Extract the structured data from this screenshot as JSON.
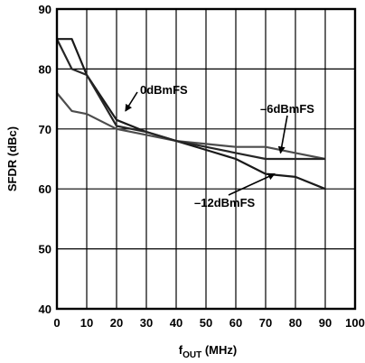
{
  "chart_data": {
    "type": "line",
    "title": "",
    "xlabel_main": "f",
    "xlabel_sub": "OUT",
    "xlabel_unit": " (MHz)",
    "ylabel": "SFDR (dBc)",
    "xlim": [
      0,
      100
    ],
    "ylim": [
      40,
      90
    ],
    "xticks": [
      "0",
      "10",
      "20",
      "30",
      "40",
      "50",
      "60",
      "70",
      "80",
      "90",
      "100"
    ],
    "yticks": [
      "40",
      "50",
      "60",
      "70",
      "80",
      "90"
    ],
    "grid": true,
    "series": [
      {
        "name": "0dBmFS",
        "color": "#1a1a1a",
        "x": [
          0,
          5,
          10,
          20,
          30,
          40,
          50,
          60,
          70,
          80,
          90
        ],
        "y": [
          85,
          85,
          79,
          71.5,
          69.5,
          68,
          66.5,
          65,
          62.5,
          62,
          60
        ]
      },
      {
        "name": "-6dBmFS",
        "color": "#4d4d4d",
        "x": [
          0,
          5,
          10,
          20,
          30,
          40,
          50,
          60,
          70,
          80,
          90
        ],
        "y": [
          76,
          73,
          72.5,
          70,
          69,
          68,
          67.5,
          67,
          67,
          66,
          65
        ]
      },
      {
        "name": "-12dBmFS",
        "color": "#262626",
        "x": [
          0,
          5,
          10,
          20,
          30,
          40,
          50,
          60,
          70,
          80,
          90
        ],
        "y": [
          85,
          80,
          79,
          70.5,
          69.5,
          68,
          67,
          66,
          65,
          65,
          65
        ]
      }
    ],
    "annotations": [
      {
        "text": "0dBmFS",
        "points_to_series": 0,
        "x": 23,
        "y": 73
      },
      {
        "text": "–6dBmFS",
        "points_to_series": 1,
        "x": 75,
        "y": 66
      },
      {
        "text": "–12dBmFS",
        "points_to_series": 2,
        "x": 73,
        "y": 62.5
      }
    ]
  }
}
